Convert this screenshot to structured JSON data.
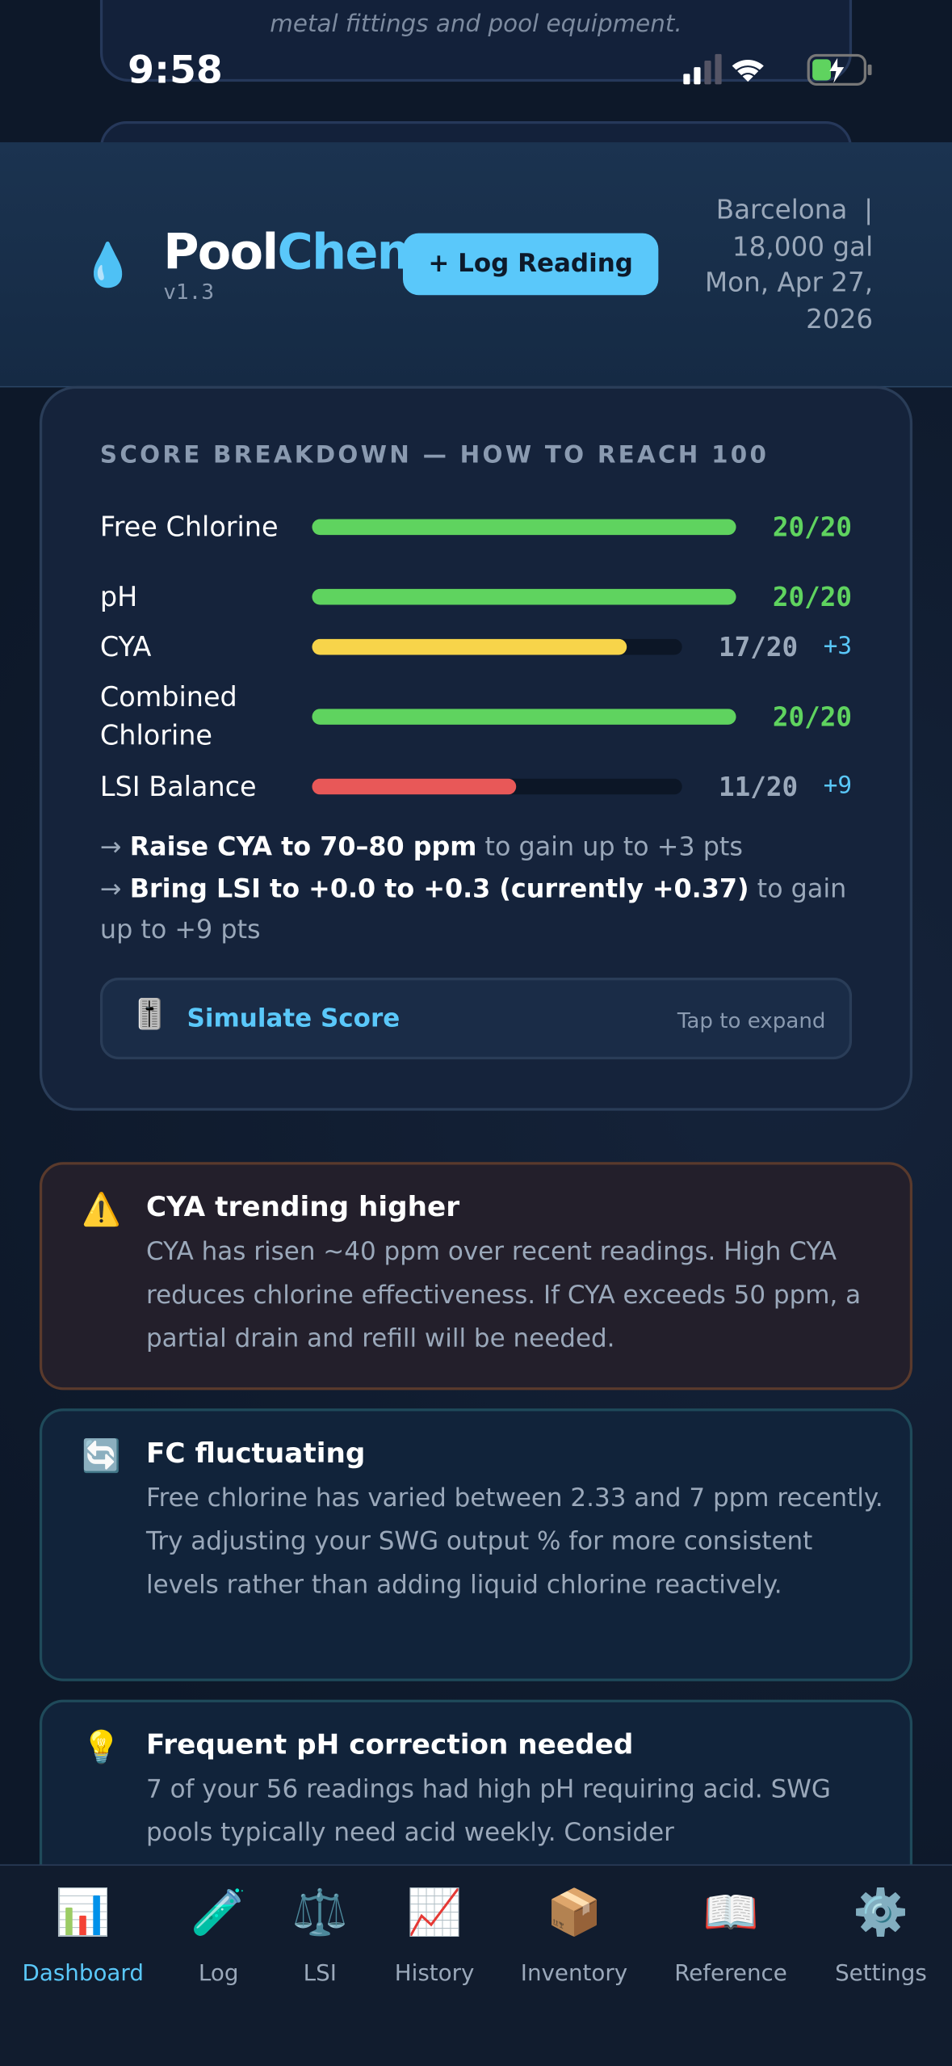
{
  "status_bar": {
    "time": "9:58"
  },
  "background_card": {
    "text": "metal fittings and pool equipment."
  },
  "header": {
    "icon": "💧",
    "brand_prefix": "Pool",
    "brand_suffix": "Chem",
    "version": "v1.3",
    "button": "+ Log Reading",
    "location": [
      "Barcelona  |",
      "18,000 gal",
      "Mon, Apr 27,",
      "2026"
    ]
  },
  "score_breakdown": {
    "title": "SCORE BREAKDOWN — HOW TO REACH 100",
    "rows": [
      {
        "label": "Free Chlorine",
        "score": 20,
        "max": 20,
        "score_label": "20/20",
        "color": "#5fd35f"
      },
      {
        "label": "pH",
        "score": 20,
        "max": 20,
        "score_label": "20/20",
        "color": "#5fd35f"
      },
      {
        "label": "CYA",
        "score": 17,
        "max": 20,
        "score_label": "17/20",
        "gain": "+3",
        "color": "#f7d44a"
      },
      {
        "label": "Combined Chlorine",
        "score": 20,
        "max": 20,
        "score_label": "20/20",
        "color": "#5fd35f"
      },
      {
        "label": "LSI Balance",
        "score": 11,
        "max": 20,
        "score_label": "11/20",
        "gain": "+9",
        "color": "#e85858"
      }
    ],
    "tips": [
      [
        {
          "text": "→ ",
          "strong": false
        },
        {
          "text": "Raise CYA to 70–80 ppm",
          "strong": true
        },
        {
          "text": " to gain up to +3 pts",
          "strong": false
        }
      ],
      [
        {
          "text": "→ ",
          "strong": false
        },
        {
          "text": "Bring LSI to +0.0 to +0.3 (currently +0.37)",
          "strong": true
        },
        {
          "text": " to gain up to +9 pts",
          "strong": false
        }
      ]
    ]
  },
  "simulate": {
    "icon": "🎚️",
    "label": "Simulate Score",
    "hint": "Tap to expand"
  },
  "alerts": [
    {
      "icon": "⚠️",
      "title": "CYA trending higher",
      "body": "CYA has risen ~40 ppm over recent readings. High CYA reduces chlorine effectiveness. If CYA exceeds 50 ppm, a partial drain and refill will be needed.",
      "tone": "warning"
    },
    {
      "icon": "🔄",
      "title": "FC fluctuating",
      "body": "Free chlorine has varied between 2.33 and 7 ppm recently. Try adjusting your SWG output % for more consistent levels rather than adding liquid chlorine reactively.",
      "tone": "info"
    },
    {
      "icon": "💡",
      "title": "Frequent pH correction needed",
      "body": "7 of your 56 readings had high pH requiring acid. SWG pools typically need acid weekly. Consider",
      "tone": "info"
    }
  ],
  "tabs": [
    {
      "icon": "📊",
      "label": "Dashboard",
      "active": true
    },
    {
      "icon": "🧪",
      "label": "Log",
      "active": false
    },
    {
      "icon": "⚖️",
      "label": "LSI",
      "active": false
    },
    {
      "icon": "📈",
      "label": "History",
      "active": false
    },
    {
      "icon": "📦",
      "label": "Inventory",
      "active": false
    },
    {
      "icon": "📖",
      "label": "Reference",
      "active": false
    },
    {
      "icon": "⚙️",
      "label": "Settings",
      "active": false
    }
  ]
}
